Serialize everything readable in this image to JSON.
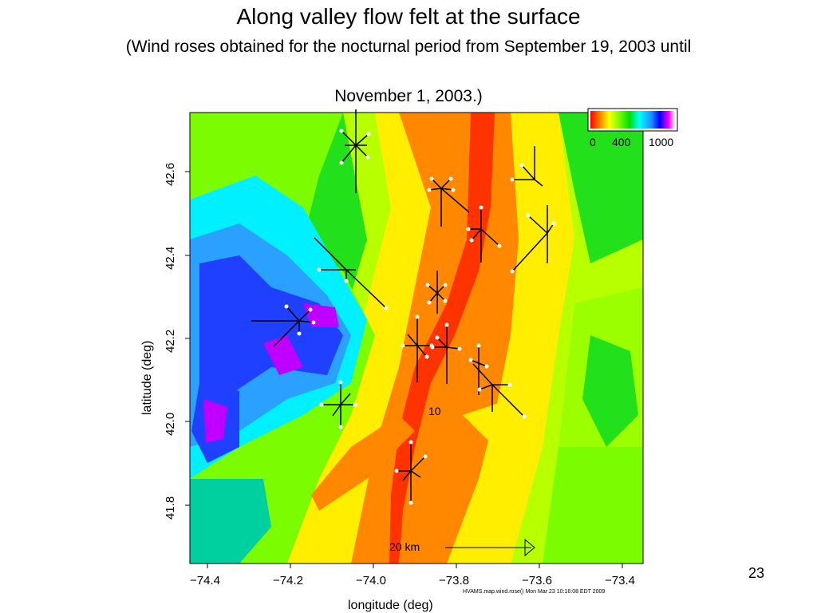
{
  "slide": {
    "title": "Along valley flow felt at the surface",
    "subtitle_line1": "(Wind roses obtained for the nocturnal period from September 19, 2003 until",
    "subtitle_line2": "November 1, 2003.)",
    "slide_number": "23"
  },
  "map": {
    "ylabel": "latitude (deg)",
    "xlabel": "longitude (deg)",
    "x_ticks": [
      "−74.4",
      "−74.2",
      "−74.0",
      "−73.8",
      "−73.6",
      "−73.4"
    ],
    "y_ticks": [
      "42.6",
      "42.4",
      "42.2",
      "42.0",
      "41.8"
    ],
    "scale_label": "20 km",
    "contour_label": "10",
    "footer_note": "HVAMS.map.wind.rose()  Mon Mar 23 10:16:08 EDT 2009",
    "colorbar_ticks": [
      "0",
      "400",
      "1000"
    ],
    "colorbar_colors": [
      "#ff0000",
      "#ff8c00",
      "#ffff00",
      "#7cfc00",
      "#00e000",
      "#00ffff",
      "#1e90ff",
      "#0000ff",
      "#ff00ff",
      "#ffffff"
    ],
    "terrain_colors": {
      "valley_red": "#ff3300",
      "valley_orange": "#ff8800",
      "yellow": "#ffee00",
      "light_green": "#9cff00",
      "green": "#22e01a",
      "cyan": "#00f0ff",
      "blue": "#2040ff",
      "purple": "#c000ff"
    }
  }
}
